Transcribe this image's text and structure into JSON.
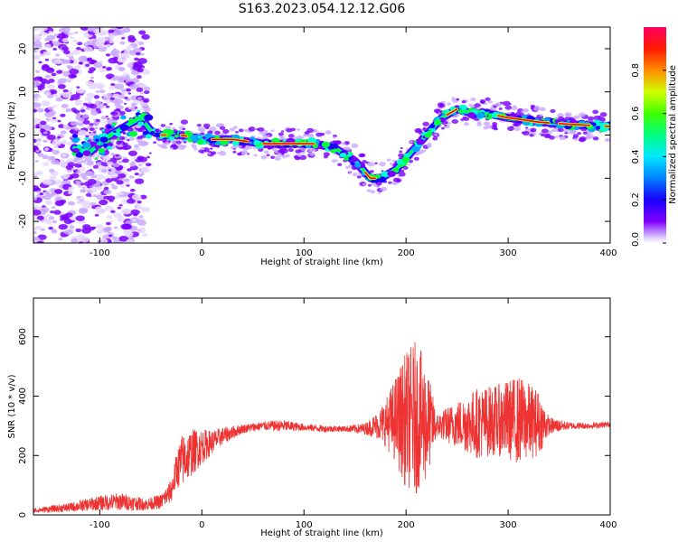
{
  "figure": {
    "title": "S163.2023.054.12.12.G06"
  },
  "chart_data": [
    {
      "type": "heatmap",
      "title": "S163.2023.054.12.12.G06",
      "xlabel": "Height of straight line (km)",
      "ylabel": "Frequency (Hz)",
      "xlim": [
        -165,
        400
      ],
      "ylim": [
        -25,
        25
      ],
      "xticks": [
        -100,
        0,
        100,
        200,
        300,
        400
      ],
      "yticks": [
        -20,
        -10,
        0,
        10,
        20
      ],
      "colorbar": {
        "label": "Normalized spectral amplitude",
        "range": [
          0,
          1
        ],
        "ticks": [
          "0.0",
          "0.2",
          "0.4",
          "0.6",
          "0.8"
        ]
      },
      "colormap": [
        "#ffffff",
        "#c9a8ff",
        "#7a00ff",
        "#1a00ff",
        "#00a8ff",
        "#00ffd0",
        "#00ff3a",
        "#d8ff00",
        "#ff8800",
        "#ff0000",
        "#ff0080"
      ],
      "frequency_track": {
        "x": [
          -125,
          -110,
          -90,
          -75,
          -60,
          -50,
          -40,
          -20,
          0,
          30,
          60,
          90,
          110,
          130,
          150,
          165,
          175,
          190,
          205,
          220,
          235,
          250,
          265,
          280,
          300,
          330,
          360,
          400
        ],
        "y": [
          -3,
          -4,
          0,
          2,
          4,
          1,
          0,
          0,
          -1,
          -1,
          -2,
          -2,
          -2,
          -3,
          -6,
          -10,
          -10,
          -8,
          -4,
          0,
          4,
          6,
          5,
          5,
          4,
          3,
          2.5,
          2
        ]
      },
      "grid": false,
      "legend": "none"
    },
    {
      "type": "line",
      "xlabel": "Height of straight line (km)",
      "ylabel": "SNR (10 * v/v)",
      "xlim": [
        -165,
        400
      ],
      "ylim": [
        0,
        730
      ],
      "xticks": [
        -100,
        0,
        100,
        200,
        300,
        400
      ],
      "yticks": [
        0,
        200,
        400,
        600
      ],
      "color": "#ee3333",
      "series_envelope": {
        "x": [
          -165,
          -130,
          -100,
          -80,
          -55,
          -40,
          -30,
          -25,
          -20,
          -10,
          0,
          10,
          20,
          40,
          60,
          80,
          100,
          120,
          140,
          160,
          170,
          180,
          190,
          200,
          210,
          220,
          230,
          250,
          270,
          290,
          310,
          330,
          340,
          360,
          380,
          400
        ],
        "mean": [
          15,
          25,
          40,
          45,
          35,
          45,
          80,
          150,
          180,
          210,
          230,
          245,
          265,
          290,
          300,
          300,
          295,
          290,
          290,
          290,
          300,
          310,
          320,
          320,
          330,
          310,
          300,
          305,
          310,
          320,
          320,
          310,
          300,
          300,
          300,
          305
        ],
        "amplitude": [
          8,
          15,
          25,
          30,
          20,
          25,
          40,
          60,
          90,
          80,
          60,
          40,
          30,
          15,
          15,
          20,
          12,
          12,
          10,
          20,
          40,
          80,
          150,
          230,
          260,
          200,
          40,
          80,
          120,
          120,
          150,
          110,
          30,
          12,
          10,
          10
        ]
      },
      "grid": false,
      "legend": "none"
    }
  ]
}
